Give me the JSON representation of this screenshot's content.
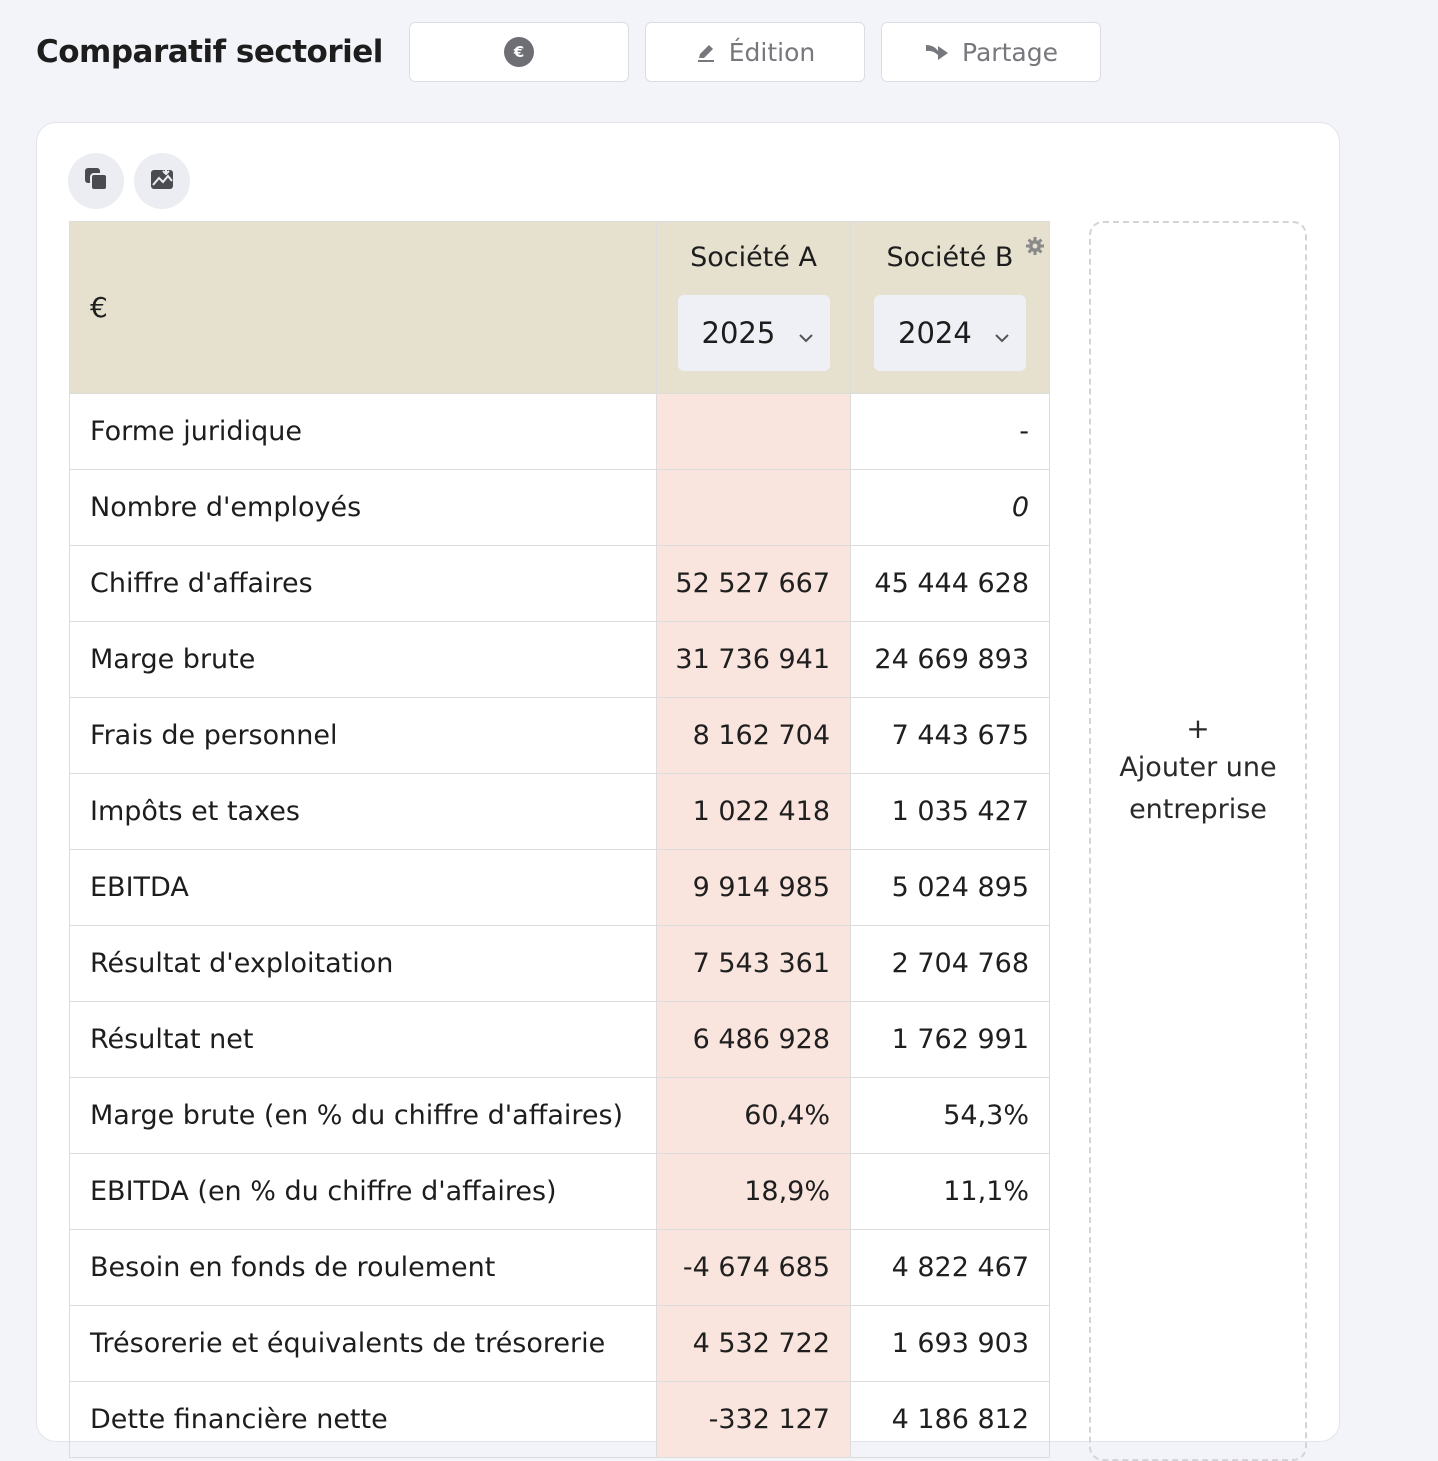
{
  "header": {
    "title": "Comparatif sectoriel",
    "currency_symbol": "€",
    "edit_label": "Édition",
    "share_label": "Partage"
  },
  "table": {
    "unit": "€",
    "companies": [
      {
        "name": "Société A",
        "year": "2025"
      },
      {
        "name": "Société B",
        "year": "2024"
      }
    ],
    "rows": [
      {
        "label": "Forme juridique",
        "a": "",
        "b": "-"
      },
      {
        "label": "Nombre d'employés",
        "a": "",
        "b": "0"
      },
      {
        "label": "Chiffre d'affaires",
        "a": "52 527 667",
        "b": "45 444 628"
      },
      {
        "label": "Marge brute",
        "a": "31 736 941",
        "b": "24 669 893"
      },
      {
        "label": "Frais de personnel",
        "a": "8 162 704",
        "b": "7 443 675"
      },
      {
        "label": "Impôts et taxes",
        "a": "1 022 418",
        "b": "1 035 427"
      },
      {
        "label": "EBITDA",
        "a": "9 914 985",
        "b": "5 024 895"
      },
      {
        "label": "Résultat d'exploitation",
        "a": "7 543 361",
        "b": "2 704 768"
      },
      {
        "label": "Résultat net",
        "a": "6 486 928",
        "b": "1 762 991"
      },
      {
        "label": "Marge brute (en % du chiffre d'affaires)",
        "a": "60,4%",
        "b": "54,3%"
      },
      {
        "label": "EBITDA (en % du chiffre d'affaires)",
        "a": "18,9%",
        "b": "11,1%"
      },
      {
        "label": "Besoin en fonds de roulement",
        "a": "-4 674 685",
        "b": "4 822 467"
      },
      {
        "label": "Trésorerie et équivalents de trésorerie",
        "a": "4 532 722",
        "b": "1 693 903"
      },
      {
        "label": "Dette financière nette",
        "a": "-332 127",
        "b": "4 186 812"
      }
    ]
  },
  "add_company": {
    "plus": "+",
    "label": "Ajouter une entreprise"
  },
  "colors": {
    "header_bg": "#e6e1cf",
    "highlight_col": "#f9e4de",
    "page_bg": "#f3f4f9"
  },
  "icons": [
    "euro-badge-icon",
    "pen-icon",
    "share-arrow-icon",
    "copy-icon",
    "export-chart-icon",
    "chevron-down-icon",
    "gear-icon"
  ]
}
